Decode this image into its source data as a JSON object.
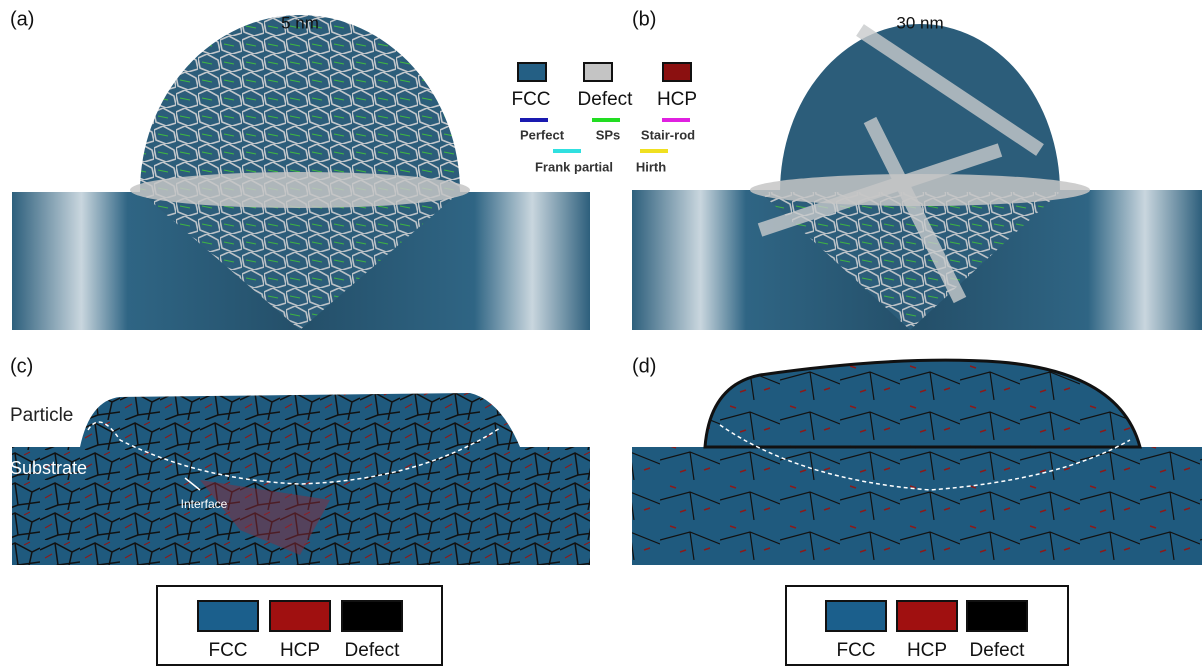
{
  "panels": [
    {
      "label": "(a)",
      "title": "5 nm"
    },
    {
      "label": "(b)",
      "title": "30 nm"
    },
    {
      "label": "(c)",
      "annotations": [
        "Particle",
        "Substrate",
        "Interface"
      ]
    },
    {
      "label": "(d)"
    }
  ],
  "top_legend": {
    "phases": [
      "FCC",
      "Defect",
      "HCP"
    ],
    "dislocations": [
      "Perfect",
      "SPs",
      "Stair-rod",
      "Frank partial",
      "Hirth"
    ]
  },
  "bottom_legends": [
    [
      "FCC",
      "HCP",
      "Defect"
    ],
    [
      "FCC",
      "HCP",
      "Defect"
    ]
  ]
}
